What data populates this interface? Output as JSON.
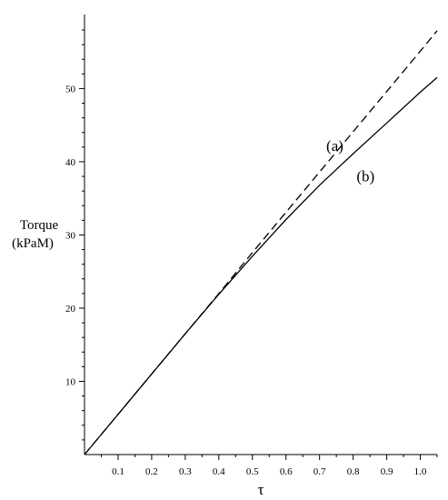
{
  "chart_data": {
    "type": "line",
    "xlabel": "τ",
    "ylabel_line1": "Torque",
    "ylabel_line2": "(kPaM)",
    "xlim": [
      0,
      1.05
    ],
    "ylim": [
      0,
      58
    ],
    "grid": false,
    "x_ticks": [
      0.1,
      0.2,
      0.3,
      0.4,
      0.5,
      0.6,
      0.7,
      0.8,
      0.9,
      1.0
    ],
    "x_tick_labels": [
      "0.1",
      "0.2",
      "0.3",
      "0.4",
      "0.5",
      "0.6",
      "0.7",
      "0.8",
      "0.9",
      "1.0"
    ],
    "y_ticks": [
      10,
      20,
      30,
      40,
      50
    ],
    "y_tick_labels": [
      "10",
      "20",
      "30",
      "40",
      "50"
    ],
    "series": [
      {
        "style": "dashed",
        "x": [
          0,
          0.1,
          0.2,
          0.3,
          0.4,
          0.5,
          0.6,
          0.7,
          0.8,
          0.9,
          1.0,
          1.05
        ],
        "y": [
          0,
          5.5,
          11.0,
          16.5,
          22.0,
          27.6,
          33.1,
          38.6,
          44.1,
          49.6,
          55.1,
          57.9
        ]
      },
      {
        "style": "solid",
        "x": [
          0,
          0.1,
          0.2,
          0.3,
          0.4,
          0.5,
          0.6,
          0.7,
          0.8,
          0.9,
          1.0,
          1.05
        ],
        "y": [
          0,
          5.5,
          11.0,
          16.5,
          21.9,
          27.1,
          32.1,
          36.8,
          41.1,
          45.3,
          49.5,
          51.5
        ]
      }
    ],
    "annotations": [
      {
        "text": "(a)",
        "x": 0.72,
        "y": 41.5
      },
      {
        "text": "(b)",
        "x": 0.81,
        "y": 37.3
      }
    ]
  }
}
